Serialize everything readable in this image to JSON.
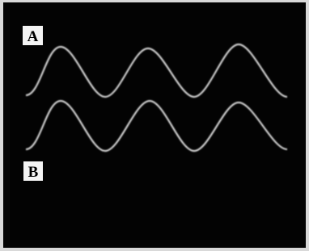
{
  "traces": [
    {
      "label": "A"
    },
    {
      "label": "B"
    }
  ]
}
